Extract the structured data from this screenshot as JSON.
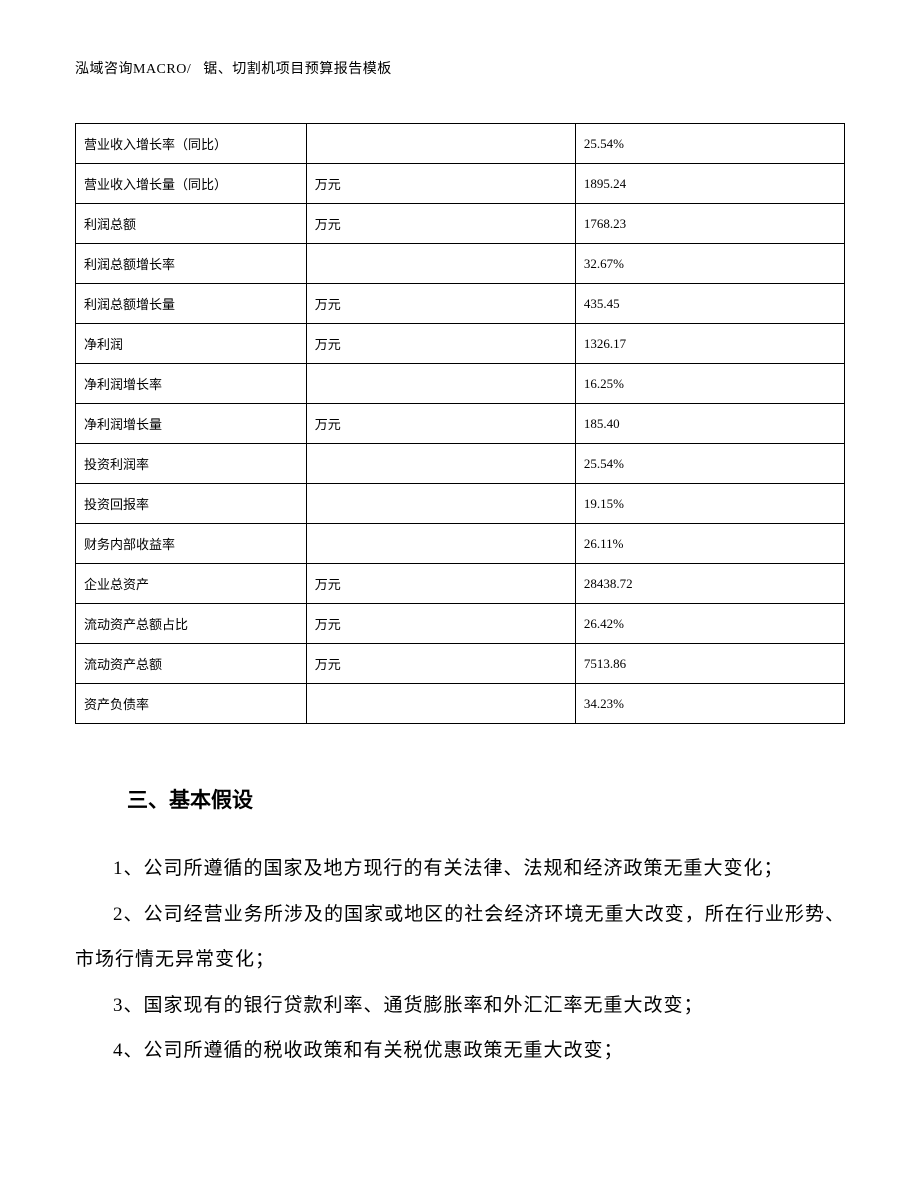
{
  "header": {
    "company": "泓域咨询MACRO/",
    "doc_title": "锯、切割机项目预算报告模板"
  },
  "table": {
    "border_color": "#000000",
    "background_color": "#ffffff",
    "font_size": 13,
    "columns": [
      {
        "key": "label",
        "width_pct": 30
      },
      {
        "key": "unit",
        "width_pct": 35
      },
      {
        "key": "value",
        "width_pct": 35
      }
    ],
    "rows": [
      {
        "label": "营业收入增长率（同比）",
        "unit": "",
        "value": "25.54%"
      },
      {
        "label": "营业收入增长量（同比）",
        "unit": "万元",
        "value": "1895.24"
      },
      {
        "label": "利润总额",
        "unit": "万元",
        "value": "1768.23"
      },
      {
        "label": "利润总额增长率",
        "unit": "",
        "value": "32.67%"
      },
      {
        "label": "利润总额增长量",
        "unit": "万元",
        "value": "435.45"
      },
      {
        "label": "净利润",
        "unit": "万元",
        "value": "1326.17"
      },
      {
        "label": "净利润增长率",
        "unit": "",
        "value": "16.25%"
      },
      {
        "label": "净利润增长量",
        "unit": "万元",
        "value": "185.40"
      },
      {
        "label": "投资利润率",
        "unit": "",
        "value": "25.54%"
      },
      {
        "label": "投资回报率",
        "unit": "",
        "value": "19.15%"
      },
      {
        "label": "财务内部收益率",
        "unit": "",
        "value": "26.11%"
      },
      {
        "label": "企业总资产",
        "unit": "万元",
        "value": "28438.72"
      },
      {
        "label": "流动资产总额占比",
        "unit": "万元",
        "value": "26.42%"
      },
      {
        "label": "流动资产总额",
        "unit": "万元",
        "value": "7513.86"
      },
      {
        "label": "资产负债率",
        "unit": "",
        "value": "34.23%"
      }
    ]
  },
  "section": {
    "heading": "三、基本假设",
    "heading_fontsize": 21,
    "body_fontsize": 19,
    "line_height": 2.4,
    "paragraphs": [
      "1、公司所遵循的国家及地方现行的有关法律、法规和经济政策无重大变化；",
      "2、公司经营业务所涉及的国家或地区的社会经济环境无重大改变，所在行业形势、市场行情无异常变化；",
      "3、国家现有的银行贷款利率、通货膨胀率和外汇汇率无重大改变；",
      "4、公司所遵循的税收政策和有关税优惠政策无重大改变；"
    ]
  }
}
